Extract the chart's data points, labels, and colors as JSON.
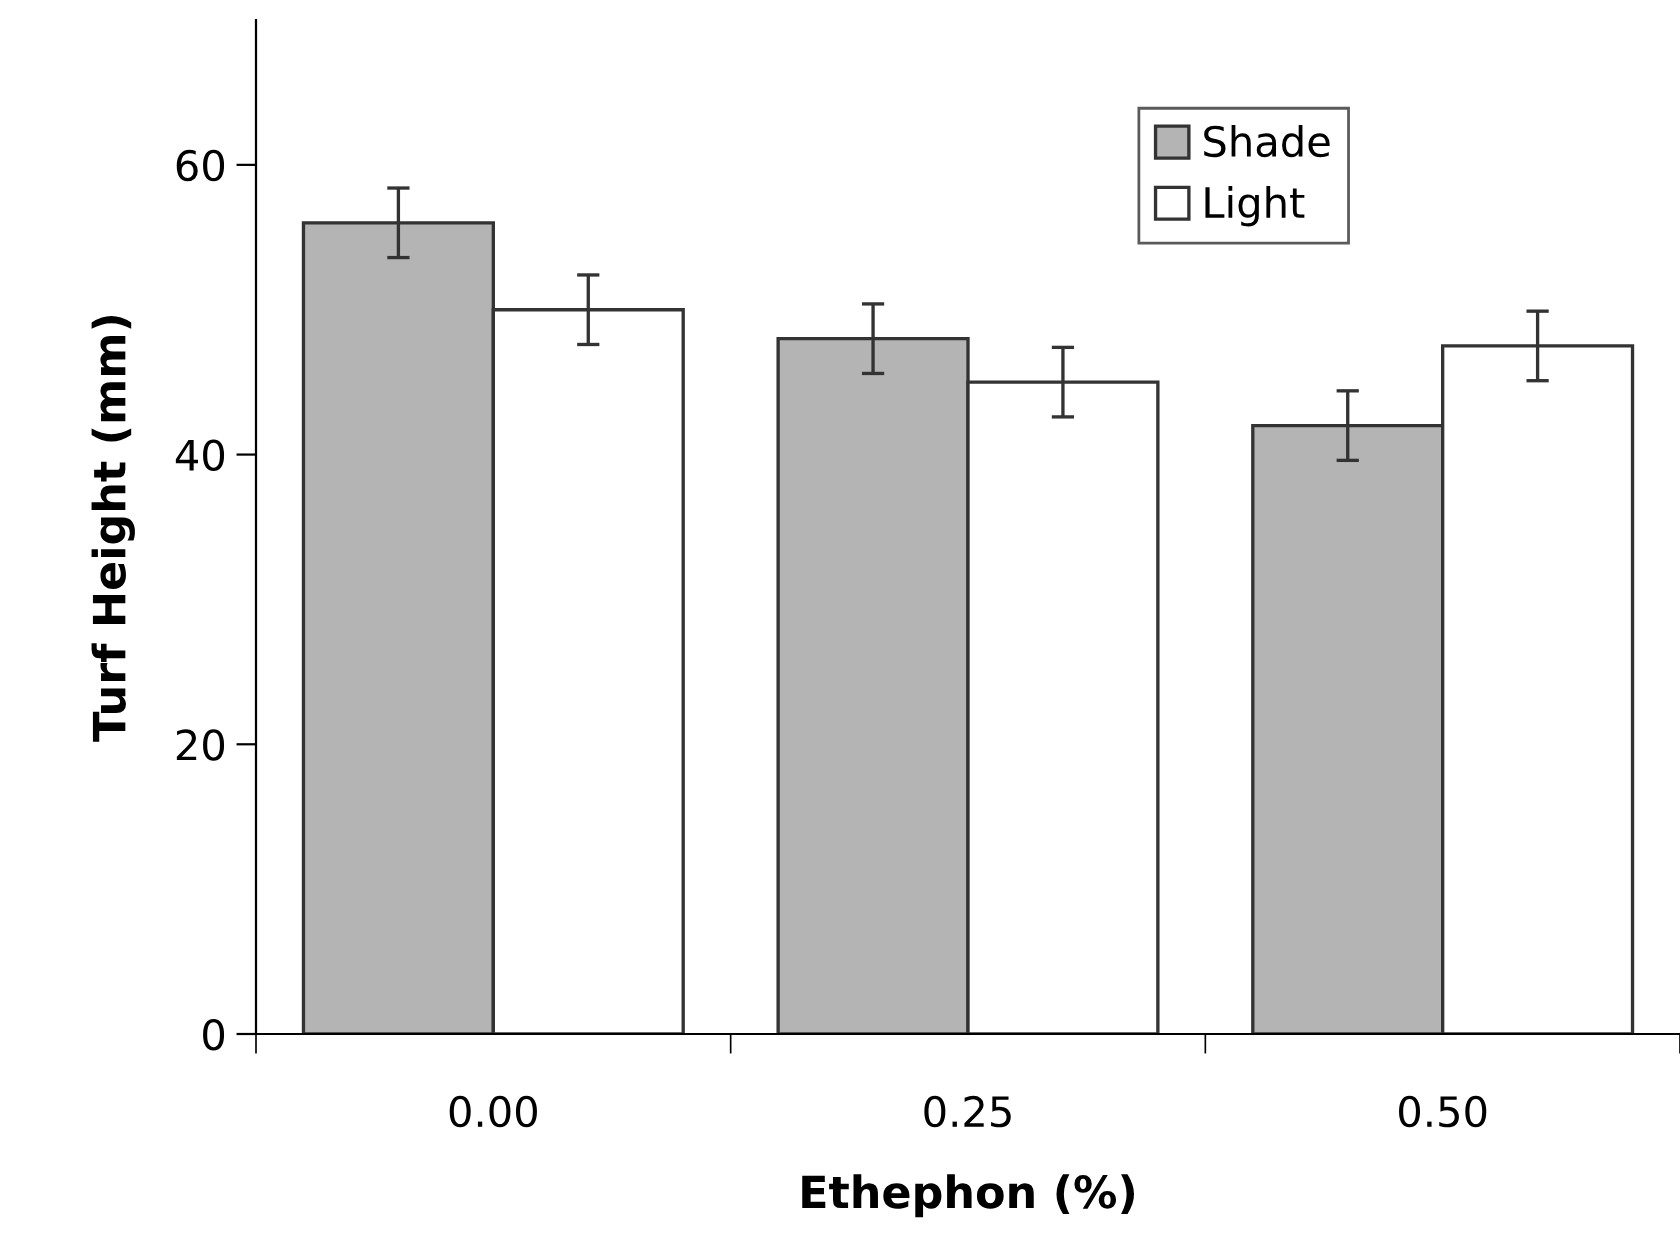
{
  "chart_data": {
    "type": "bar",
    "xlabel": "Ethephon (%)",
    "ylabel": "Turf Height (mm)",
    "categories": [
      "0.00",
      "0.25",
      "0.50"
    ],
    "series": [
      {
        "name": "Shade",
        "color": "#b4b4b4",
        "values": [
          56,
          48,
          42
        ],
        "errors": [
          2.4,
          2.4,
          2.4
        ]
      },
      {
        "name": "Light",
        "color": "#ffffff",
        "values": [
          50,
          45,
          47.5
        ],
        "errors": [
          2.4,
          2.4,
          2.4
        ]
      }
    ],
    "ylim": [
      0,
      70
    ],
    "yticks": [
      0,
      20,
      40,
      60
    ],
    "grid": false,
    "legend": "top right"
  }
}
